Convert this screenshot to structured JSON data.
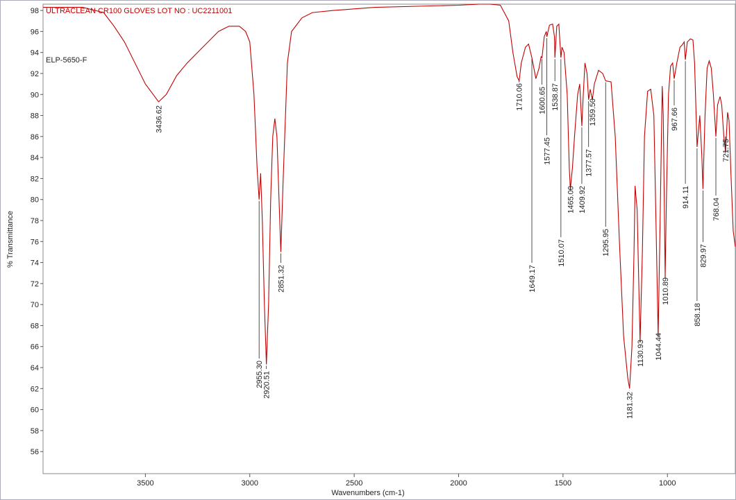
{
  "chart_data": {
    "type": "line",
    "title": "ULTRACLEAN CR100 GLOVES LOT NO : UC2211001",
    "subtitle": "ELP-5650-F",
    "x_label": "Wavenumbers (cm-1)",
    "y_label": "% Transmittance",
    "color": "#c00000",
    "xlim": [
      3990,
      675
    ],
    "ylim": [
      53.9,
      98.6
    ],
    "xticks": [
      3500,
      3000,
      2500,
      2000,
      1500,
      1000
    ],
    "yticks": [
      56,
      58,
      60,
      62,
      64,
      66,
      68,
      70,
      72,
      74,
      76,
      78,
      80,
      82,
      84,
      86,
      88,
      90,
      92,
      94,
      96,
      98
    ],
    "x": [
      3990,
      3800,
      3700,
      3650,
      3600,
      3550,
      3500,
      3436.62,
      3400,
      3350,
      3300,
      3250,
      3200,
      3150,
      3100,
      3050,
      3020,
      3000,
      2980,
      2965,
      2955.3,
      2948,
      2940,
      2930,
      2920.51,
      2910,
      2900,
      2890,
      2880,
      2870,
      2860,
      2851.32,
      2840,
      2820,
      2800,
      2750,
      2700,
      2600,
      2400,
      2000,
      1900,
      1850,
      1800,
      1760,
      1740,
      1720,
      1710.06,
      1700,
      1680,
      1665,
      1649.17,
      1630,
      1615,
      1605,
      1600.65,
      1590,
      1580,
      1577.45,
      1565,
      1550,
      1541,
      1538.87,
      1530,
      1520,
      1515,
      1510.07,
      1505,
      1495,
      1480,
      1470,
      1465,
      1455,
      1445,
      1430,
      1420,
      1409.92,
      1403,
      1395,
      1385,
      1377.57,
      1370,
      1359.5,
      1350,
      1330,
      1310,
      1295.95,
      1270,
      1250,
      1230,
      1210,
      1190,
      1181.32,
      1170,
      1160,
      1155,
      1145,
      1135,
      1130.93,
      1120,
      1110,
      1095,
      1080,
      1065,
      1055,
      1044.44,
      1035,
      1025,
      1020,
      1010.89,
      1005,
      995,
      985,
      975,
      967.66,
      955,
      940,
      930,
      920,
      914.11,
      905,
      890,
      878,
      870,
      858.18,
      845,
      835,
      829.97,
      820,
      810,
      800,
      790,
      780,
      768.04,
      760,
      748,
      740,
      730,
      721.75,
      712,
      705,
      695,
      685,
      675
    ],
    "values": [
      98.3,
      98.3,
      97.8,
      96.5,
      95,
      93,
      91,
      89.3,
      90,
      91.8,
      93,
      94,
      95,
      96,
      96.5,
      96.5,
      96,
      95,
      90,
      83,
      80,
      82.5,
      78,
      70,
      64.3,
      70,
      80,
      86,
      87.7,
      86,
      80,
      75,
      82,
      93,
      96,
      97.3,
      97.8,
      98,
      98.3,
      98.5,
      98.6,
      98.6,
      98.5,
      97,
      94,
      91.7,
      91.3,
      93,
      94.5,
      94.8,
      93.5,
      91.5,
      92.5,
      93.6,
      93.5,
      95.5,
      96,
      95.5,
      96.6,
      96.7,
      95.5,
      93.5,
      96.5,
      96.7,
      95,
      93.5,
      94.5,
      94,
      90,
      83,
      81,
      83,
      86,
      90,
      91,
      87,
      90,
      93,
      92,
      89.5,
      90.5,
      89.5,
      91,
      92.3,
      92,
      91.3,
      91.2,
      86,
      76,
      67,
      63,
      62,
      66,
      75,
      81.3,
      79,
      70,
      66.5,
      75,
      86,
      90.3,
      90.5,
      88,
      78,
      67,
      78,
      90.8,
      88,
      72.6,
      80,
      90,
      92.7,
      93,
      91.5,
      93,
      94.5,
      94.7,
      95,
      93.3,
      95,
      95.3,
      95.2,
      93,
      85,
      88,
      84,
      81,
      88,
      92.5,
      93.2,
      92.5,
      90,
      86,
      89,
      89.8,
      89,
      86,
      84.5,
      88.3,
      87.5,
      82,
      77,
      75.5
    ],
    "peaks": [
      {
        "value": 3436.62,
        "label": "3436.62",
        "y": 89.3
      },
      {
        "value": 2955.3,
        "label": "2955.30",
        "y": 80
      },
      {
        "value": 2920.51,
        "label": "2920.51",
        "y": 64.3
      },
      {
        "value": 2851.32,
        "label": "2851.32",
        "y": 75
      },
      {
        "value": 1710.06,
        "label": "1710.06",
        "y": 91.3
      },
      {
        "value": 1649.17,
        "label": "1649.17",
        "y": 93.5
      },
      {
        "value": 1600.65,
        "label": "1600.65",
        "y": 93.5
      },
      {
        "value": 1577.45,
        "label": "1577.45",
        "y": 95.5
      },
      {
        "value": 1538.87,
        "label": "1538.87",
        "y": 93.5
      },
      {
        "value": 1510.07,
        "label": "1510.07",
        "y": 93.5
      },
      {
        "value": 1465,
        "label": "1465.00",
        "y": 81
      },
      {
        "value": 1409.92,
        "label": "1409.92",
        "y": 87
      },
      {
        "value": 1377.57,
        "label": "1377.57",
        "y": 89.5
      },
      {
        "value": 1359.5,
        "label": "1359.50",
        "y": 89.5
      },
      {
        "value": 1295.95,
        "label": "1295.95",
        "y": 91.3
      },
      {
        "value": 1181.32,
        "label": "1181.32",
        "y": 62
      },
      {
        "value": 1130.93,
        "label": "1130.93",
        "y": 66.5
      },
      {
        "value": 1044.44,
        "label": "1044.44",
        "y": 67
      },
      {
        "value": 1010.89,
        "label": "1010.89",
        "y": 72.6
      },
      {
        "value": 967.66,
        "label": "967.66",
        "y": 91.5
      },
      {
        "value": 914.11,
        "label": "914.11",
        "y": 93.3
      },
      {
        "value": 858.18,
        "label": "858.18",
        "y": 85
      },
      {
        "value": 829.97,
        "label": "829.97",
        "y": 81
      },
      {
        "value": 768.04,
        "label": "768.04",
        "y": 86
      },
      {
        "value": 721.75,
        "label": "721.75",
        "y": 84.5
      }
    ]
  }
}
